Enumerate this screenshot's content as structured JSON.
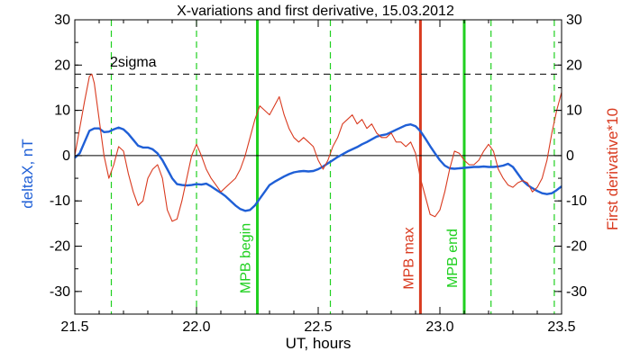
{
  "chart_data": {
    "type": "line",
    "title": "X-variations and first derivative, 15.03.2012",
    "xlabel": "UT, hours",
    "ylabel": "deltaX, nT",
    "ylabel_right": "First derivative*10",
    "xlim": [
      21.5,
      23.5
    ],
    "ylim": [
      -35,
      30
    ],
    "xticks": [
      21.5,
      22.0,
      22.5,
      23.0,
      23.5
    ],
    "xtick_labels": [
      "21.5",
      "22.0",
      "22.5",
      "23.0",
      "23.5"
    ],
    "yticks": [
      -30,
      -20,
      -10,
      0,
      10,
      20,
      30
    ],
    "ytick_labels": [
      "-30",
      "-20",
      "-10",
      "0",
      "10",
      "20",
      "30"
    ],
    "grid": false,
    "zero_line": 0,
    "threshold": {
      "label": "2sigma",
      "value": 18,
      "color": "#000000"
    },
    "series": [
      {
        "name": "deltaX, nT",
        "axis": "left",
        "color": "#1f5fd6",
        "x": [
          21.5,
          21.52,
          21.54,
          21.56,
          21.58,
          21.6,
          21.62,
          21.64,
          21.66,
          21.68,
          21.7,
          21.72,
          21.74,
          21.76,
          21.78,
          21.8,
          21.82,
          21.84,
          21.86,
          21.88,
          21.9,
          21.92,
          21.94,
          21.96,
          21.98,
          22.0,
          22.02,
          22.04,
          22.06,
          22.08,
          22.1,
          22.12,
          22.14,
          22.16,
          22.18,
          22.2,
          22.22,
          22.24,
          22.26,
          22.28,
          22.3,
          22.32,
          22.34,
          22.36,
          22.38,
          22.4,
          22.42,
          22.44,
          22.46,
          22.48,
          22.5,
          22.52,
          22.54,
          22.56,
          22.58,
          22.6,
          22.62,
          22.64,
          22.66,
          22.68,
          22.7,
          22.72,
          22.74,
          22.76,
          22.78,
          22.8,
          22.82,
          22.84,
          22.86,
          22.88,
          22.9,
          22.92,
          22.94,
          22.96,
          22.98,
          23.0,
          23.02,
          23.04,
          23.06,
          23.08,
          23.1,
          23.12,
          23.14,
          23.16,
          23.18,
          23.2,
          23.22,
          23.24,
          23.26,
          23.28,
          23.3,
          23.32,
          23.34,
          23.36,
          23.38,
          23.4,
          23.42,
          23.44,
          23.46,
          23.48,
          23.5
        ],
        "values": [
          -0.5,
          0.5,
          3,
          5.5,
          6,
          6,
          5.2,
          5.3,
          5.8,
          6.2,
          5.8,
          4.8,
          3.5,
          2.2,
          1.8,
          1.8,
          1.4,
          0.5,
          -1,
          -3,
          -5,
          -6.3,
          -6.5,
          -6.6,
          -6.5,
          -6.3,
          -6.4,
          -6.2,
          -6.8,
          -7.5,
          -8.2,
          -9,
          -10,
          -11,
          -11.8,
          -12.2,
          -12,
          -11,
          -9.5,
          -8,
          -6.5,
          -5.8,
          -5.2,
          -4.6,
          -4.1,
          -3.7,
          -3.5,
          -3.4,
          -3.5,
          -3.4,
          -3,
          -2.4,
          -1.7,
          -1,
          -0.3,
          0.3,
          0.9,
          1.4,
          1.9,
          2.5,
          3,
          3.6,
          4.2,
          4.5,
          4.7,
          5.2,
          5.7,
          6.2,
          6.7,
          6.9,
          6.5,
          5.4,
          3.8,
          2.1,
          0.5,
          -1,
          -2.2,
          -2.8,
          -2.9,
          -2.8,
          -2.7,
          -2.6,
          -2.5,
          -2.5,
          -2.4,
          -2.5,
          -2.5,
          -2.4,
          -2.2,
          -1.8,
          -2.5,
          -4,
          -5.5,
          -6.5,
          -7.2,
          -7.8,
          -8.3,
          -8.5,
          -8.3,
          -7.6,
          -6.8
        ]
      },
      {
        "name": "First derivative*10",
        "axis": "right",
        "color": "#d93a1f",
        "x": [
          21.5,
          21.52,
          21.54,
          21.56,
          21.57,
          21.58,
          21.6,
          21.62,
          21.64,
          21.66,
          21.68,
          21.7,
          21.72,
          21.74,
          21.76,
          21.78,
          21.8,
          21.82,
          21.84,
          21.86,
          21.88,
          21.9,
          21.92,
          21.94,
          21.96,
          21.98,
          22.0,
          22.02,
          22.04,
          22.06,
          22.08,
          22.1,
          22.12,
          22.14,
          22.16,
          22.18,
          22.2,
          22.22,
          22.24,
          22.26,
          22.28,
          22.3,
          22.32,
          22.34,
          22.36,
          22.38,
          22.4,
          22.42,
          22.44,
          22.46,
          22.48,
          22.5,
          22.52,
          22.54,
          22.56,
          22.58,
          22.6,
          22.62,
          22.64,
          22.66,
          22.68,
          22.7,
          22.72,
          22.74,
          22.76,
          22.78,
          22.8,
          22.82,
          22.84,
          22.86,
          22.88,
          22.9,
          22.92,
          22.94,
          22.96,
          22.98,
          23.0,
          23.02,
          23.04,
          23.06,
          23.08,
          23.1,
          23.12,
          23.14,
          23.16,
          23.18,
          23.2,
          23.22,
          23.24,
          23.26,
          23.28,
          23.3,
          23.32,
          23.34,
          23.36,
          23.38,
          23.4,
          23.42,
          23.44,
          23.46,
          23.48,
          23.5
        ],
        "values": [
          0,
          6,
          12,
          17.5,
          18,
          16,
          8,
          0,
          -5,
          -2,
          2,
          1,
          -4,
          -8,
          -11,
          -10,
          -5,
          -3,
          -2,
          -5,
          -12,
          -14.5,
          -14,
          -10,
          -5,
          0,
          2.5,
          0,
          -3,
          -5,
          -6.5,
          -8,
          -7,
          -6,
          -5,
          -3,
          0,
          4,
          8,
          11,
          10,
          9,
          11,
          13,
          9,
          6,
          4,
          3,
          4,
          3,
          2,
          -1,
          -3,
          -1,
          2,
          4,
          7,
          8,
          9,
          7,
          8,
          6,
          7,
          5,
          4,
          4,
          5,
          3,
          3,
          2,
          3,
          0.5,
          -5,
          -9,
          -13,
          -13.5,
          -12,
          -8,
          -3,
          1,
          0.5,
          -1,
          -2,
          -2,
          -1,
          1,
          2.5,
          1,
          -3,
          -5,
          -6.5,
          -7,
          -6,
          -5.5,
          -6,
          -8,
          -7,
          -5,
          -1,
          5,
          10,
          14
        ]
      }
    ],
    "vlines": [
      {
        "x": 21.65,
        "style": "dashed",
        "color": "#20d020",
        "label": ""
      },
      {
        "x": 22.0,
        "style": "dashed",
        "color": "#20d020",
        "label": ""
      },
      {
        "x": 22.25,
        "style": "solid",
        "color": "#20d020",
        "label": "MPB begin"
      },
      {
        "x": 22.55,
        "style": "dashed",
        "color": "#20d020",
        "label": ""
      },
      {
        "x": 22.92,
        "style": "solid",
        "color": "#d93a1f",
        "label": "MPB max"
      },
      {
        "x": 23.1,
        "style": "solid",
        "color": "#20d020",
        "label": "MPB end"
      },
      {
        "x": 23.21,
        "style": "dashed",
        "color": "#20d020",
        "label": ""
      },
      {
        "x": 23.47,
        "style": "dashed",
        "color": "#20d020",
        "label": ""
      }
    ]
  }
}
